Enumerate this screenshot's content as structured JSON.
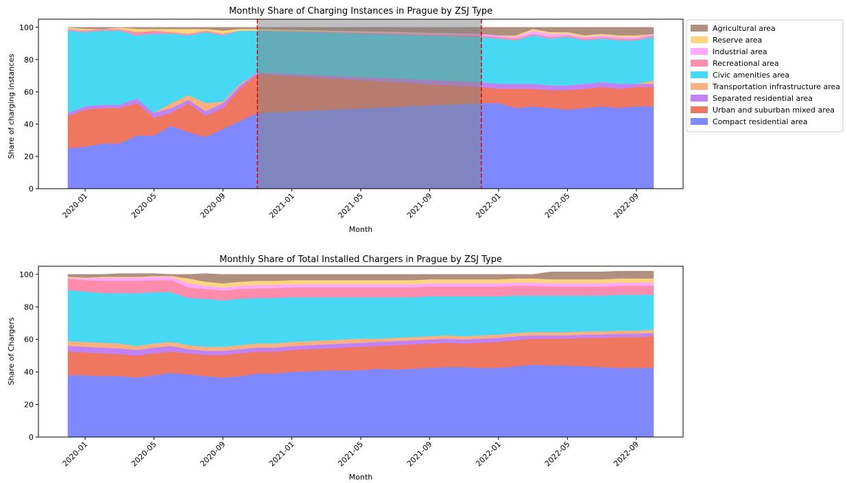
{
  "chart_data": [
    {
      "type": "area",
      "stacked": true,
      "title": "Monthly Share of Charging Instances in Prague by ZSJ Type",
      "xlabel": "Month",
      "ylabel": "Share of charging instances",
      "ylim": [
        0,
        105
      ],
      "yticks": [
        0,
        20,
        40,
        60,
        80,
        100
      ],
      "xtick_labels": [
        "2020-01",
        "2020-05",
        "2020-09",
        "2021-01",
        "2021-05",
        "2021-09",
        "2022-01",
        "2022-05",
        "2022-09"
      ],
      "x": [
        "2019-12",
        "2020-01",
        "2020-02",
        "2020-03",
        "2020-04",
        "2020-05",
        "2020-06",
        "2020-07",
        "2020-08",
        "2020-09",
        "2020-10",
        "2020-11",
        "2021-12",
        "2022-01",
        "2022-02",
        "2022-03",
        "2022-04",
        "2022-05",
        "2022-06",
        "2022-07",
        "2022-08",
        "2022-09",
        "2022-10"
      ],
      "highlight": {
        "from": "2020-11",
        "to": "2021-12",
        "color": "#808080",
        "line_color": "#e00000"
      },
      "legend": "outside-right",
      "series": [
        {
          "name": "Compact residential area",
          "color": "#8088ff",
          "values": [
            25,
            26,
            28,
            28,
            33,
            33,
            39,
            35,
            32,
            37,
            42,
            47,
            53,
            53,
            50,
            51,
            50,
            49,
            50,
            51,
            50,
            51,
            51
          ]
        },
        {
          "name": "Urban and suburban mixed area",
          "color": "#ef7760",
          "values": [
            20,
            23,
            22,
            22,
            20,
            11,
            8,
            18,
            13,
            13,
            20,
            24,
            10,
            9,
            12,
            11,
            11,
            12,
            12,
            12,
            12,
            12,
            12
          ]
        },
        {
          "name": "Separated residential area",
          "color": "#c082f5",
          "values": [
            2,
            2,
            2,
            2,
            3,
            3,
            3,
            2,
            3,
            3,
            2,
            1,
            3,
            3,
            3,
            3,
            3,
            3,
            3,
            3,
            3,
            2,
            2
          ]
        },
        {
          "name": "Transportation infrastructure area",
          "color": "#f9b27f",
          "values": [
            0,
            0,
            0,
            0,
            0,
            0,
            3,
            3,
            5,
            1,
            1,
            0,
            0,
            0,
            0,
            0,
            0,
            0,
            0,
            0,
            0,
            0,
            2
          ]
        },
        {
          "name": "Civic amenities area",
          "color": "#47d8f3",
          "values": [
            51,
            46,
            46,
            46,
            39,
            49,
            43,
            37,
            44,
            41,
            33,
            26,
            28,
            28,
            27,
            30,
            29,
            30,
            27,
            27,
            27,
            27,
            27
          ]
        },
        {
          "name": "Recreational area",
          "color": "#ff8cac",
          "values": [
            1,
            1,
            1,
            1,
            2,
            2,
            1,
            1,
            1,
            1,
            0,
            0,
            1,
            1,
            1,
            1,
            1,
            1,
            1,
            1,
            1,
            1,
            1
          ]
        },
        {
          "name": "Industrial area",
          "color": "#ffaaff",
          "values": [
            0,
            0,
            0,
            0,
            0,
            0,
            0,
            0,
            0,
            0,
            0,
            0,
            1,
            1,
            1,
            2,
            2,
            1,
            1,
            1,
            1,
            1,
            1
          ]
        },
        {
          "name": "Reserve area",
          "color": "#fcd67e",
          "values": [
            1,
            1,
            0,
            1,
            2,
            1,
            2,
            3,
            1,
            2,
            1,
            1,
            0,
            0,
            1,
            1,
            1,
            1,
            1,
            1,
            1,
            1,
            0
          ]
        },
        {
          "name": "Agricultural area",
          "color": "#b08e80",
          "values": [
            0,
            1,
            1,
            0,
            1,
            1,
            1,
            1,
            1,
            2,
            1,
            1,
            4,
            5,
            5,
            1,
            3,
            3,
            5,
            4,
            5,
            5,
            4
          ]
        }
      ]
    },
    {
      "type": "area",
      "stacked": true,
      "title": "Monthly Share of Total Installed Chargers in Prague by ZSJ Type",
      "xlabel": "Month",
      "ylabel": "Share of Chargers",
      "ylim": [
        0,
        105
      ],
      "yticks": [
        0,
        20,
        40,
        60,
        80,
        100
      ],
      "xtick_labels": [
        "2020-01",
        "2020-05",
        "2020-09",
        "2021-01",
        "2021-05",
        "2021-09",
        "2022-01",
        "2022-05",
        "2022-09"
      ],
      "x": [
        "2019-12",
        "2020-01",
        "2020-02",
        "2020-03",
        "2020-04",
        "2020-05",
        "2020-06",
        "2020-07",
        "2020-08",
        "2020-09",
        "2020-10",
        "2020-11",
        "2020-12",
        "2021-01",
        "2021-02",
        "2021-03",
        "2021-04",
        "2021-05",
        "2021-06",
        "2021-07",
        "2021-08",
        "2021-09",
        "2021-10",
        "2021-11",
        "2021-12",
        "2022-01",
        "2022-02",
        "2022-03",
        "2022-04",
        "2022-05",
        "2022-06",
        "2022-07",
        "2022-08",
        "2022-09",
        "2022-10"
      ],
      "series": [
        {
          "name": "Compact residential area",
          "color": "#8088ff",
          "values": [
            38,
            38,
            37.5,
            37.5,
            36.5,
            38,
            39.5,
            38.5,
            37.5,
            36.5,
            37.5,
            39,
            39,
            40,
            40.5,
            41,
            41,
            41,
            42,
            41.5,
            42,
            42.5,
            43,
            43,
            42.5,
            42.5,
            43.5,
            44.5,
            44,
            44,
            43.5,
            43,
            42.5,
            42.5,
            42.5
          ]
        },
        {
          "name": "Urban and suburban mixed area",
          "color": "#ef7760",
          "values": [
            14.5,
            14,
            14,
            13.5,
            13.5,
            13.5,
            13,
            13,
            13,
            14,
            14,
            13.5,
            13.5,
            13.5,
            13.5,
            13.5,
            14,
            14.5,
            14,
            15,
            15,
            15,
            15,
            14.5,
            15.5,
            16,
            16,
            16,
            16.5,
            16.5,
            17.5,
            18,
            19,
            19,
            19.5
          ]
        },
        {
          "name": "Separated residential area",
          "color": "#c082f5",
          "values": [
            3.5,
            3.5,
            3.5,
            3.5,
            3.5,
            3.5,
            3.5,
            2.5,
            2.5,
            2.5,
            2.5,
            2.5,
            2.5,
            2.5,
            2.5,
            2.5,
            2.5,
            2.5,
            2.5,
            2.5,
            2.5,
            2.5,
            2.5,
            2.5,
            2.5,
            2.5,
            2.5,
            2,
            2,
            2,
            2,
            2,
            2,
            2,
            2
          ]
        },
        {
          "name": "Transportation infrastructure area",
          "color": "#f9b27f",
          "values": [
            3,
            3,
            3,
            3,
            2.5,
            2.5,
            2.5,
            2.5,
            2.5,
            2.5,
            2.5,
            2.5,
            2.5,
            2.5,
            2.5,
            2.5,
            2.5,
            2.5,
            2,
            2,
            2,
            2,
            2,
            2,
            2,
            2,
            2,
            2,
            2,
            2,
            2,
            2,
            2,
            2,
            2
          ]
        },
        {
          "name": "Civic amenities area",
          "color": "#47d8f3",
          "values": [
            31.5,
            31,
            30.5,
            31,
            32.5,
            31.5,
            30.5,
            29,
            29.5,
            28.5,
            28.5,
            28,
            28,
            27.5,
            27,
            26.5,
            26,
            25.5,
            25.5,
            25,
            24.5,
            24.5,
            24,
            24.5,
            24,
            23.5,
            23,
            22.5,
            22.5,
            22.5,
            22,
            22,
            22,
            22,
            21.5
          ]
        },
        {
          "name": "Recreational area",
          "color": "#ff8cac",
          "values": [
            7,
            7,
            7.5,
            7.5,
            7.5,
            7.5,
            7.5,
            6.5,
            6,
            6,
            6,
            6,
            6,
            6,
            6,
            6,
            6,
            6,
            6,
            6,
            6,
            6,
            6,
            6,
            6,
            6,
            6,
            6,
            5.5,
            5.5,
            5.5,
            5.5,
            5.5,
            5.5,
            5.5
          ]
        },
        {
          "name": "Industrial area",
          "color": "#ffaaff",
          "values": [
            0.5,
            1,
            2,
            2,
            2,
            2,
            2,
            2.5,
            2,
            2,
            2,
            2,
            2,
            2,
            2,
            2,
            2,
            2,
            2,
            2,
            2,
            2,
            2,
            2,
            2,
            2,
            2,
            2,
            2,
            2,
            2,
            2,
            2,
            2,
            2
          ]
        },
        {
          "name": "Reserve area",
          "color": "#fcd67e",
          "values": [
            0.5,
            0.5,
            0.5,
            0.5,
            0.5,
            0.5,
            0.5,
            3,
            2.5,
            2.5,
            2.5,
            2.5,
            2.5,
            2.5,
            2.5,
            2.5,
            2.5,
            2.5,
            2.5,
            2.5,
            2.5,
            2.5,
            2.5,
            2.5,
            2.5,
            2.5,
            2.5,
            2.5,
            2.5,
            2.5,
            2.5,
            2.5,
            2.5,
            2.5,
            2.5
          ]
        },
        {
          "name": "Agricultural area",
          "color": "#b08e80",
          "values": [
            1.5,
            2,
            1.5,
            2,
            2,
            1.5,
            1,
            2.5,
            5,
            5.5,
            4.5,
            4,
            4,
            3.5,
            3.5,
            3.5,
            3.5,
            3.5,
            3.5,
            3.5,
            3.5,
            3,
            3,
            3,
            3,
            3,
            2.5,
            2.5,
            4.5,
            4.5,
            4.5,
            4.5,
            4.5,
            4.5,
            4.5
          ]
        }
      ]
    }
  ]
}
